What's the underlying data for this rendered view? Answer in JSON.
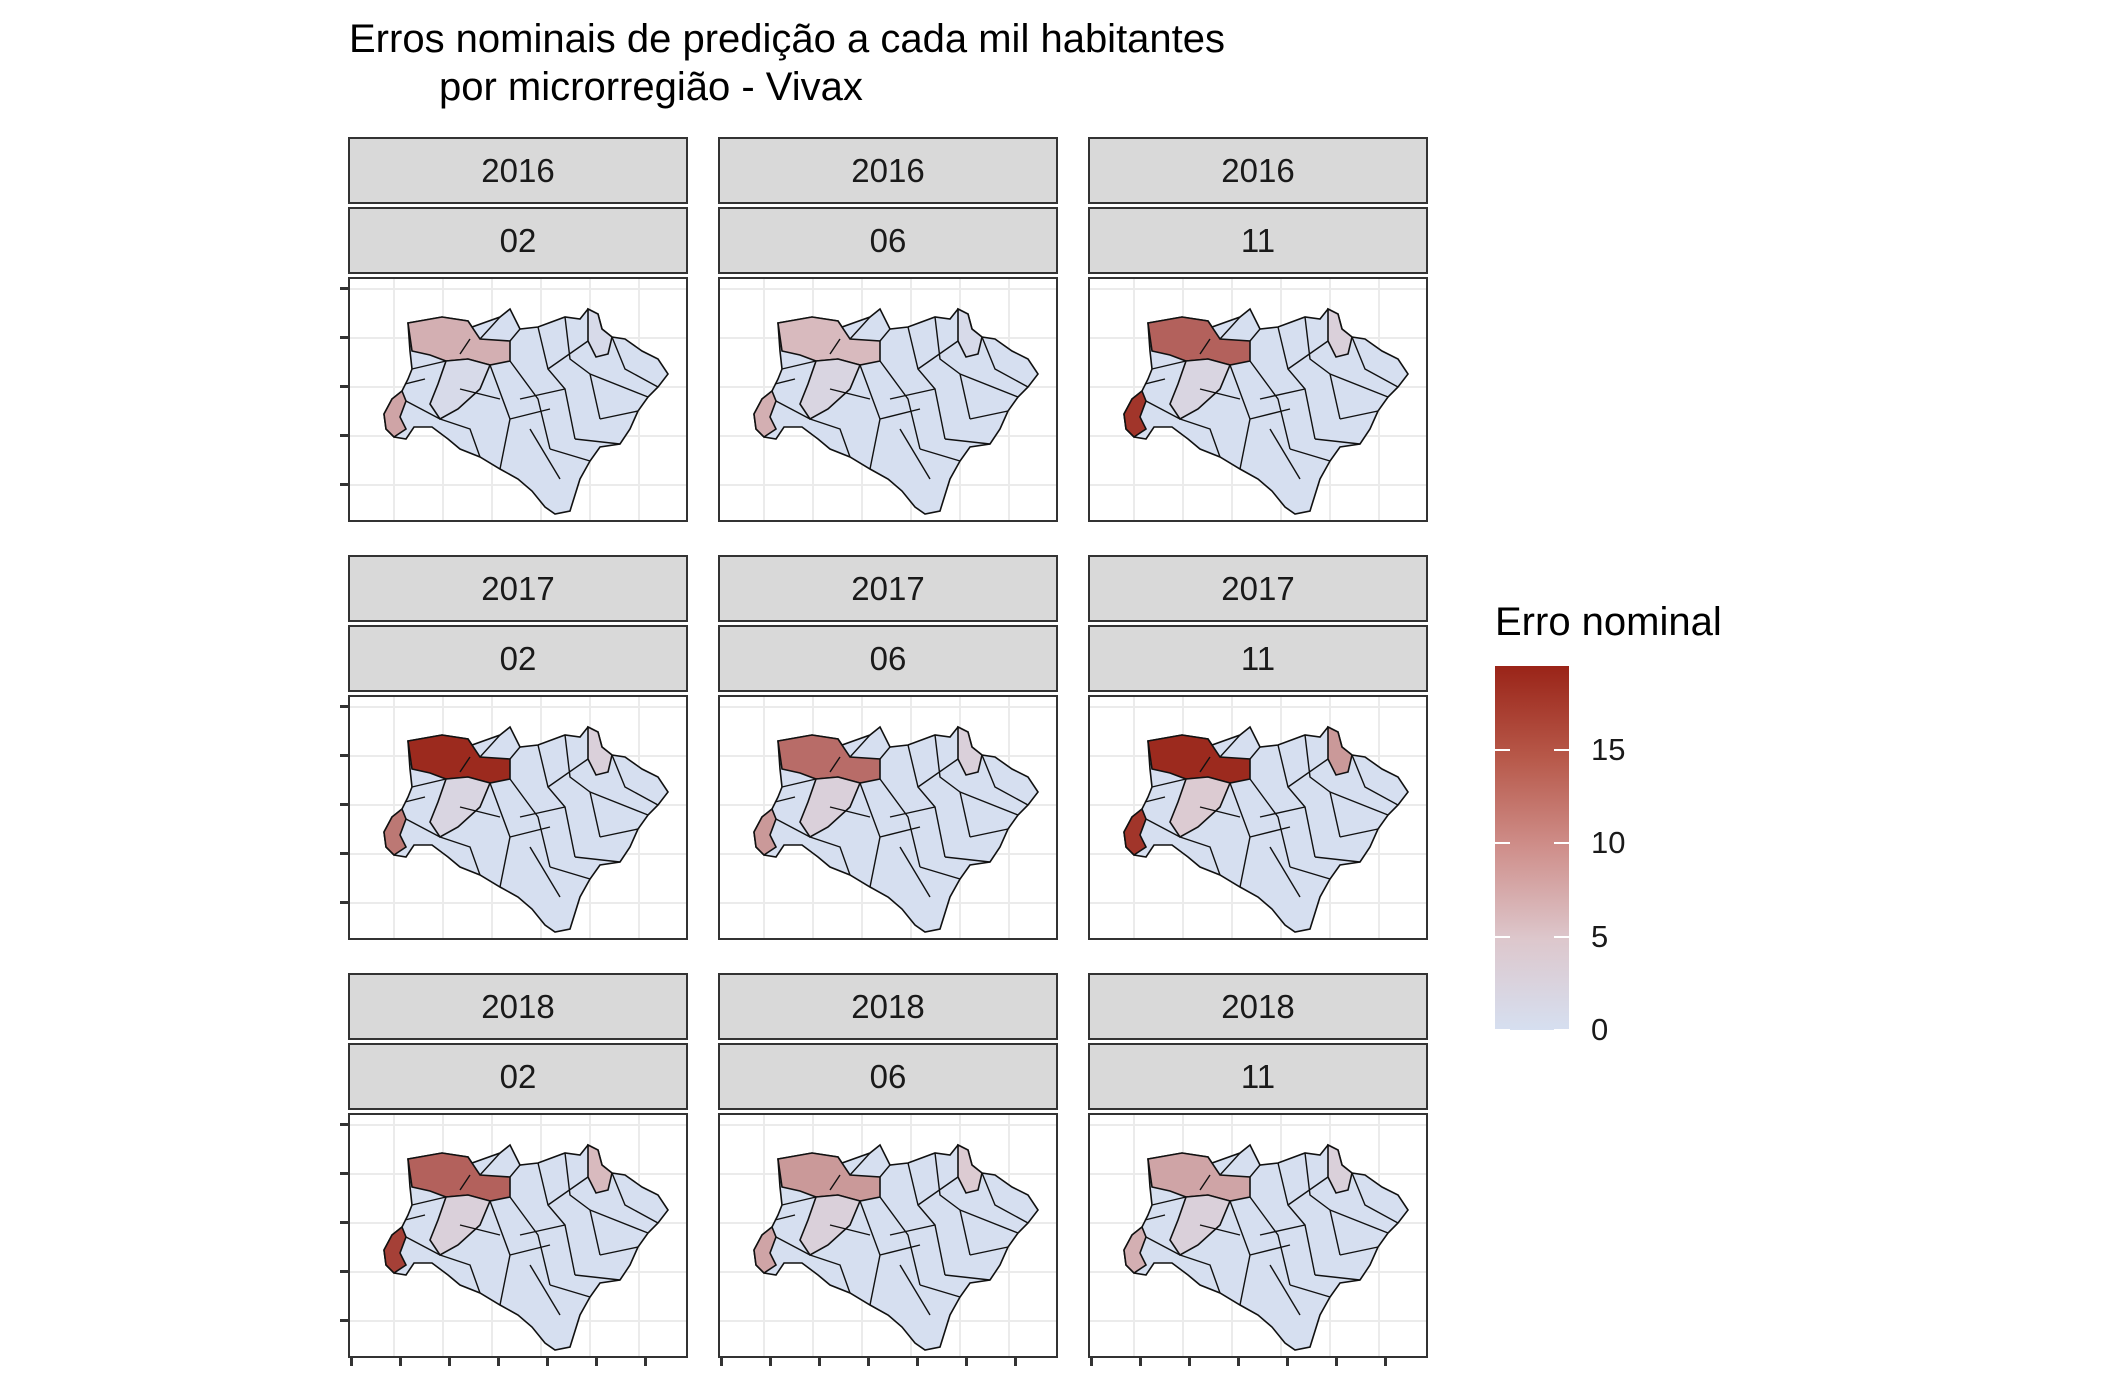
{
  "title_line1": "Erros nominais de predição a cada mil habitantes",
  "title_line2": "por microrregião - Vivax",
  "chart_data": {
    "type": "heatmap",
    "title": "Erros nominais de predição a cada mil habitantes por microrregião - Vivax",
    "facets": [
      {
        "year": "2016",
        "month": "02",
        "highlights": {
          "west": 8,
          "northwest": 7,
          "center": 1,
          "east": 1
        }
      },
      {
        "year": "2016",
        "month": "06",
        "highlights": {
          "west": 7,
          "northwest": 6,
          "center": 2,
          "east": 1
        }
      },
      {
        "year": "2016",
        "month": "11",
        "highlights": {
          "west": 18,
          "northwest": 14,
          "center": 2,
          "east": 3
        }
      },
      {
        "year": "2017",
        "month": "02",
        "highlights": {
          "west": 12,
          "northwest": 19,
          "center": 2,
          "east": 3
        }
      },
      {
        "year": "2017",
        "month": "06",
        "highlights": {
          "west": 9,
          "northwest": 13,
          "center": 3,
          "east": 3
        }
      },
      {
        "year": "2017",
        "month": "11",
        "highlights": {
          "west": 18,
          "northwest": 19,
          "center": 4,
          "east": 9
        }
      },
      {
        "year": "2018",
        "month": "02",
        "highlights": {
          "west": 17,
          "northwest": 14,
          "center": 3,
          "east": 6
        }
      },
      {
        "year": "2018",
        "month": "06",
        "highlights": {
          "west": 8,
          "northwest": 9,
          "center": 3,
          "east": 4
        }
      },
      {
        "year": "2018",
        "month": "11",
        "highlights": {
          "west": 7,
          "northwest": 8,
          "center": 3,
          "east": 3
        }
      }
    ],
    "legend": {
      "title": "Erro nominal",
      "ticks": [
        "0",
        "5",
        "10",
        "15"
      ],
      "range": [
        0,
        19.5
      ],
      "colors": {
        "low": "#d6dff0",
        "mid": "#ddc7cc",
        "high": "#9a2418"
      }
    },
    "grid": true
  }
}
